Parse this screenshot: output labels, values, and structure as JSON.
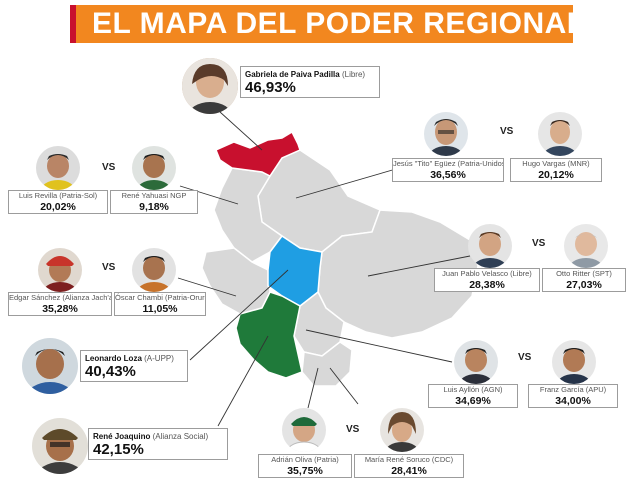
{
  "title": "EL MAPA DEL PODER REGIONAL",
  "colors": {
    "banner": "#f2871f",
    "pando": "#c8102e",
    "cochabamba": "#1f9ee3",
    "santa_cruz": "#1f7a3a",
    "map_gray": "#d8d8d8"
  },
  "vs_label": "VS",
  "regions": {
    "pando": {
      "winner": {
        "name": "Gabriela de Paiva Padilla",
        "party": "(Libre)",
        "pct": "46,93%"
      }
    },
    "beni": {
      "a": {
        "name": "Jesús \"Tito\" Egüez (Patria-Unidos)",
        "pct": "36,56%"
      },
      "b": {
        "name": "Hugo Vargas (MNR)",
        "pct": "20,12%"
      }
    },
    "la_paz": {
      "a": {
        "name": "Luis Revilla (Patria-Sol)",
        "pct": "20,02%"
      },
      "b": {
        "name": "René Yahuasi NGP",
        "pct": "9,18%"
      }
    },
    "oruro": {
      "a": {
        "name": "Edgar Sánchez (Alianza Jach'a)",
        "pct": "35,28%"
      },
      "b": {
        "name": "Óscar Chambi (Patria-Oruro)",
        "pct": "11,05%"
      }
    },
    "santa_cruz": {
      "a": {
        "name": "Juan Pablo Velasco (Libre)",
        "pct": "28,38%"
      },
      "b": {
        "name": "Otto Ritter (SPT)",
        "pct": "27,03%"
      }
    },
    "cochabamba": {
      "winner": {
        "name": "Leonardo Loza",
        "party": "(A-UPP)",
        "pct": "40,43%"
      }
    },
    "chuquisaca": {
      "a": {
        "name": "Luis Ayllón (AGN)",
        "pct": "34,69%"
      },
      "b": {
        "name": "Franz García (APU)",
        "pct": "34,00%"
      }
    },
    "potosi": {
      "winner": {
        "name": "René Joaquino",
        "party": "(Alianza Social)",
        "pct": "42,15%"
      }
    },
    "tarija": {
      "a": {
        "name": "Adrián Oliva (Patria)",
        "pct": "35,75%"
      },
      "b": {
        "name": "María René Soruco (CDC)",
        "pct": "28,41%"
      }
    }
  }
}
